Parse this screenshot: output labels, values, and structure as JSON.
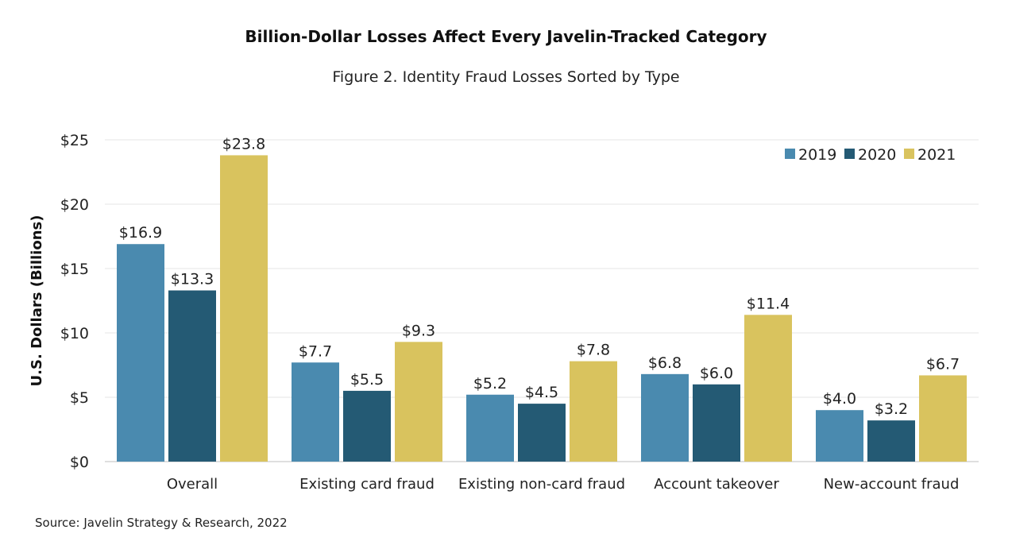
{
  "title": "Billion-Dollar Losses Affect Every Javelin-Tracked Category",
  "subtitle": "Figure 2. Identity Fraud Losses Sorted by Type",
  "source": "Source: Javelin Strategy & Research, 2022",
  "chart_data": {
    "type": "bar",
    "title": "Billion-Dollar Losses Affect Every Javelin-Tracked Category",
    "subtitle": "Figure 2. Identity Fraud Losses Sorted by Type",
    "xlabel": "",
    "ylabel": "U.S. Dollars (Billions)",
    "ylim": [
      0,
      25
    ],
    "yticks": [
      0,
      5,
      10,
      15,
      20,
      25
    ],
    "ytick_labels": [
      "$0",
      "$5",
      "$10",
      "$15",
      "$20",
      "$25"
    ],
    "grid": true,
    "legend_position": "top-right",
    "categories": [
      "Overall",
      "Existing card fraud",
      "Existing non-card fraud",
      "Account takeover",
      "New-account fraud"
    ],
    "series": [
      {
        "name": "2019",
        "color": "#4a8aaf",
        "values": [
          16.9,
          7.7,
          5.2,
          6.8,
          4.0
        ],
        "labels": [
          "$16.9",
          "$7.7",
          "$5.2",
          "$6.8",
          "$4.0"
        ]
      },
      {
        "name": "2020",
        "color": "#245a74",
        "values": [
          13.3,
          5.5,
          4.5,
          6.0,
          3.2
        ],
        "labels": [
          "$13.3",
          "$5.5",
          "$4.5",
          "$6.0",
          "$3.2"
        ]
      },
      {
        "name": "2021",
        "color": "#d9c35e",
        "values": [
          23.8,
          9.3,
          7.8,
          11.4,
          6.7
        ],
        "labels": [
          "$23.8",
          "$9.3",
          "$7.8",
          "$11.4",
          "$6.7"
        ]
      }
    ]
  }
}
